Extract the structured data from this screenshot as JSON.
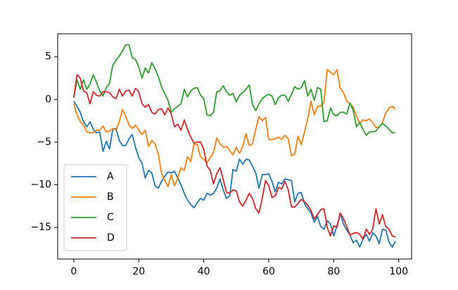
{
  "chart_data": {
    "type": "line",
    "x": [
      0,
      1,
      2,
      3,
      4,
      5,
      6,
      7,
      8,
      9,
      10,
      11,
      12,
      13,
      14,
      15,
      16,
      17,
      18,
      19,
      20,
      21,
      22,
      23,
      24,
      25,
      26,
      27,
      28,
      29,
      30,
      31,
      32,
      33,
      34,
      35,
      36,
      37,
      38,
      39,
      40,
      41,
      42,
      43,
      44,
      45,
      46,
      47,
      48,
      49,
      50,
      51,
      52,
      53,
      54,
      55,
      56,
      57,
      58,
      59,
      60,
      61,
      62,
      63,
      64,
      65,
      66,
      67,
      68,
      69,
      70,
      71,
      72,
      73,
      74,
      75,
      76,
      77,
      78,
      79,
      80,
      81,
      82,
      83,
      84,
      85,
      86,
      87,
      88,
      89,
      90,
      91,
      92,
      93,
      94,
      95,
      96,
      97,
      98,
      99
    ],
    "series": [
      {
        "name": "A",
        "color": "#1f77b4",
        "values": [
          -0.2,
          -0.8,
          -1.5,
          -2.6,
          -3.2,
          -2.6,
          -3.5,
          -3.9,
          -3.8,
          -6.1,
          -4.9,
          -5.8,
          -3.5,
          -3.4,
          -4.8,
          -5.4,
          -5.4,
          -4.6,
          -4.1,
          -5.6,
          -6.8,
          -7.5,
          -9.2,
          -8.3,
          -8.6,
          -10.1,
          -10.4,
          -9.6,
          -9.0,
          -8.5,
          -8.6,
          -8.4,
          -9.2,
          -10.0,
          -11.0,
          -11.8,
          -12.3,
          -12.7,
          -12.1,
          -11.6,
          -11.8,
          -11.0,
          -11.2,
          -11.0,
          -10.4,
          -9.3,
          -10.6,
          -11.6,
          -11.3,
          -8.2,
          -8.4,
          -7.0,
          -7.6,
          -7.0,
          -7.1,
          -7.8,
          -8.6,
          -10.4,
          -8.8,
          -8.8,
          -8.7,
          -9.6,
          -10.8,
          -9.7,
          -9.9,
          -9.3,
          -9.4,
          -9.5,
          -12.0,
          -11.0,
          -10.9,
          -12.2,
          -12.8,
          -13.3,
          -14.4,
          -13.7,
          -14.9,
          -15.2,
          -14.2,
          -14.6,
          -16.0,
          -14.8,
          -13.4,
          -14.6,
          -15.3,
          -15.9,
          -16.8,
          -16.5,
          -17.3,
          -16.4,
          -15.8,
          -16.6,
          -15.6,
          -16.0,
          -16.9,
          -15.2,
          -15.3,
          -16.7,
          -17.3,
          -16.6
        ]
      },
      {
        "name": "B",
        "color": "#ff7f0e",
        "values": [
          -0.5,
          -1.8,
          -2.6,
          -3.0,
          -3.8,
          -3.9,
          -3.9,
          -3.6,
          -3.6,
          -3.1,
          -3.8,
          -3.7,
          -3.4,
          -3.6,
          -2.6,
          -1.2,
          -2.0,
          -3.0,
          -3.4,
          -3.0,
          -3.6,
          -4.1,
          -3.6,
          -5.5,
          -4.8,
          -5.2,
          -6.4,
          -8.6,
          -9.5,
          -10.2,
          -8.8,
          -10.1,
          -9.2,
          -8.0,
          -8.3,
          -6.7,
          -7.3,
          -5.2,
          -5.3,
          -6.7,
          -7.0,
          -7.4,
          -6.8,
          -6.2,
          -4.5,
          -5.2,
          -5.6,
          -5.5,
          -6.0,
          -6.5,
          -5.6,
          -6.3,
          -5.5,
          -4.0,
          -5.4,
          -5.2,
          -3.5,
          -2.0,
          -2.5,
          -2.1,
          -4.7,
          -4.7,
          -4.6,
          -4.4,
          -4.7,
          -4.2,
          -4.6,
          -6.6,
          -6.4,
          -4.3,
          -5.3,
          -3.8,
          -2.3,
          -0.2,
          -1.8,
          -0.8,
          -0.8,
          -0.3,
          3.5,
          3.2,
          2.9,
          3.5,
          1.3,
          0.8,
          -0.2,
          -0.5,
          -0.9,
          -2.0,
          -2.8,
          -2.4,
          -2.5,
          -2.3,
          -2.7,
          -3.3,
          -3.2,
          -2.7,
          -1.6,
          -1.0,
          -0.8,
          -1.1
        ]
      },
      {
        "name": "C",
        "color": "#2ca02c",
        "values": [
          0.2,
          2.3,
          1.2,
          2.3,
          1.2,
          1.8,
          2.9,
          2.0,
          1.0,
          0.4,
          1.4,
          1.9,
          4.0,
          4.6,
          5.1,
          5.7,
          6.4,
          6.4,
          4.9,
          4.7,
          3.8,
          2.5,
          3.7,
          3.1,
          4.3,
          3.6,
          2.7,
          1.5,
          0.7,
          -0.1,
          -1.5,
          -1.1,
          -0.8,
          -0.5,
          1.2,
          0.3,
          1.0,
          1.3,
          1.4,
          0.5,
          0.1,
          -1.8,
          -1.9,
          -1.5,
          0.9,
          1.0,
          1.6,
          0.9,
          0.5,
          0.7,
          -0.3,
          0.5,
          0.8,
          1.2,
          1.7,
          -0.6,
          -1.3,
          -0.5,
          0.1,
          0.4,
          0.6,
          0.4,
          -0.6,
          0.2,
          0.5,
          0.5,
          -0.2,
          0.6,
          1.5,
          1.2,
          1.4,
          2.2,
          0.4,
          1.2,
          -0.1,
          1.4,
          1.2,
          -2.6,
          -2.5,
          -1.0,
          -1.8,
          -1.9,
          -1.5,
          -1.5,
          -1.7,
          -0.4,
          -1.3,
          -3.2,
          -2.7,
          -3.5,
          -4.2,
          -3.8,
          -3.8,
          -3.7,
          -3.2,
          -2.8,
          -3.1,
          -3.5,
          -3.9,
          -3.9
        ]
      },
      {
        "name": "D",
        "color": "#d62728",
        "values": [
          0.2,
          2.9,
          2.5,
          1.0,
          0.8,
          -0.5,
          0.9,
          0.5,
          0.4,
          0.9,
          0.9,
          0.8,
          0.3,
          0.1,
          1.2,
          0.4,
          1.0,
          1.1,
          0.4,
          1.3,
          0.9,
          -0.5,
          -0.9,
          -0.6,
          -1.5,
          -1.7,
          -1.2,
          -1.1,
          -1.8,
          -1.0,
          -1.7,
          -3.2,
          -2.9,
          -3.6,
          -2.4,
          -3.5,
          -4.4,
          -5.1,
          -5.0,
          -5.0,
          -5.8,
          -7.8,
          -8.3,
          -9.9,
          -8.7,
          -8.0,
          -9.4,
          -10.9,
          -11.0,
          -10.6,
          -10.7,
          -12.0,
          -12.5,
          -11.8,
          -11.0,
          -11.6,
          -12.8,
          -13.3,
          -11.6,
          -9.5,
          -10.1,
          -11.5,
          -11.3,
          -10.3,
          -10.5,
          -9.6,
          -10.6,
          -12.6,
          -12.6,
          -12.2,
          -11.7,
          -12.0,
          -12.4,
          -13.0,
          -14.0,
          -13.5,
          -12.9,
          -12.8,
          -15.0,
          -16.0,
          -14.8,
          -15.0,
          -13.3,
          -14.0,
          -14.9,
          -15.9,
          -15.7,
          -15.6,
          -15.8,
          -16.4,
          -15.2,
          -15.8,
          -15.2,
          -12.8,
          -14.6,
          -13.5,
          -14.9,
          -15.2,
          -16.0,
          -16.1
        ]
      }
    ],
    "xlim": [
      -4.95,
      103.95
    ],
    "ylim": [
      -18.7,
      7.7
    ],
    "xticks": [
      0,
      20,
      40,
      60,
      80,
      100
    ],
    "yticks": [
      {
        "value": -15,
        "label": "−15"
      },
      {
        "value": -10,
        "label": "−10"
      },
      {
        "value": -5,
        "label": "−5"
      },
      0,
      5
    ],
    "legend": "lower left"
  }
}
